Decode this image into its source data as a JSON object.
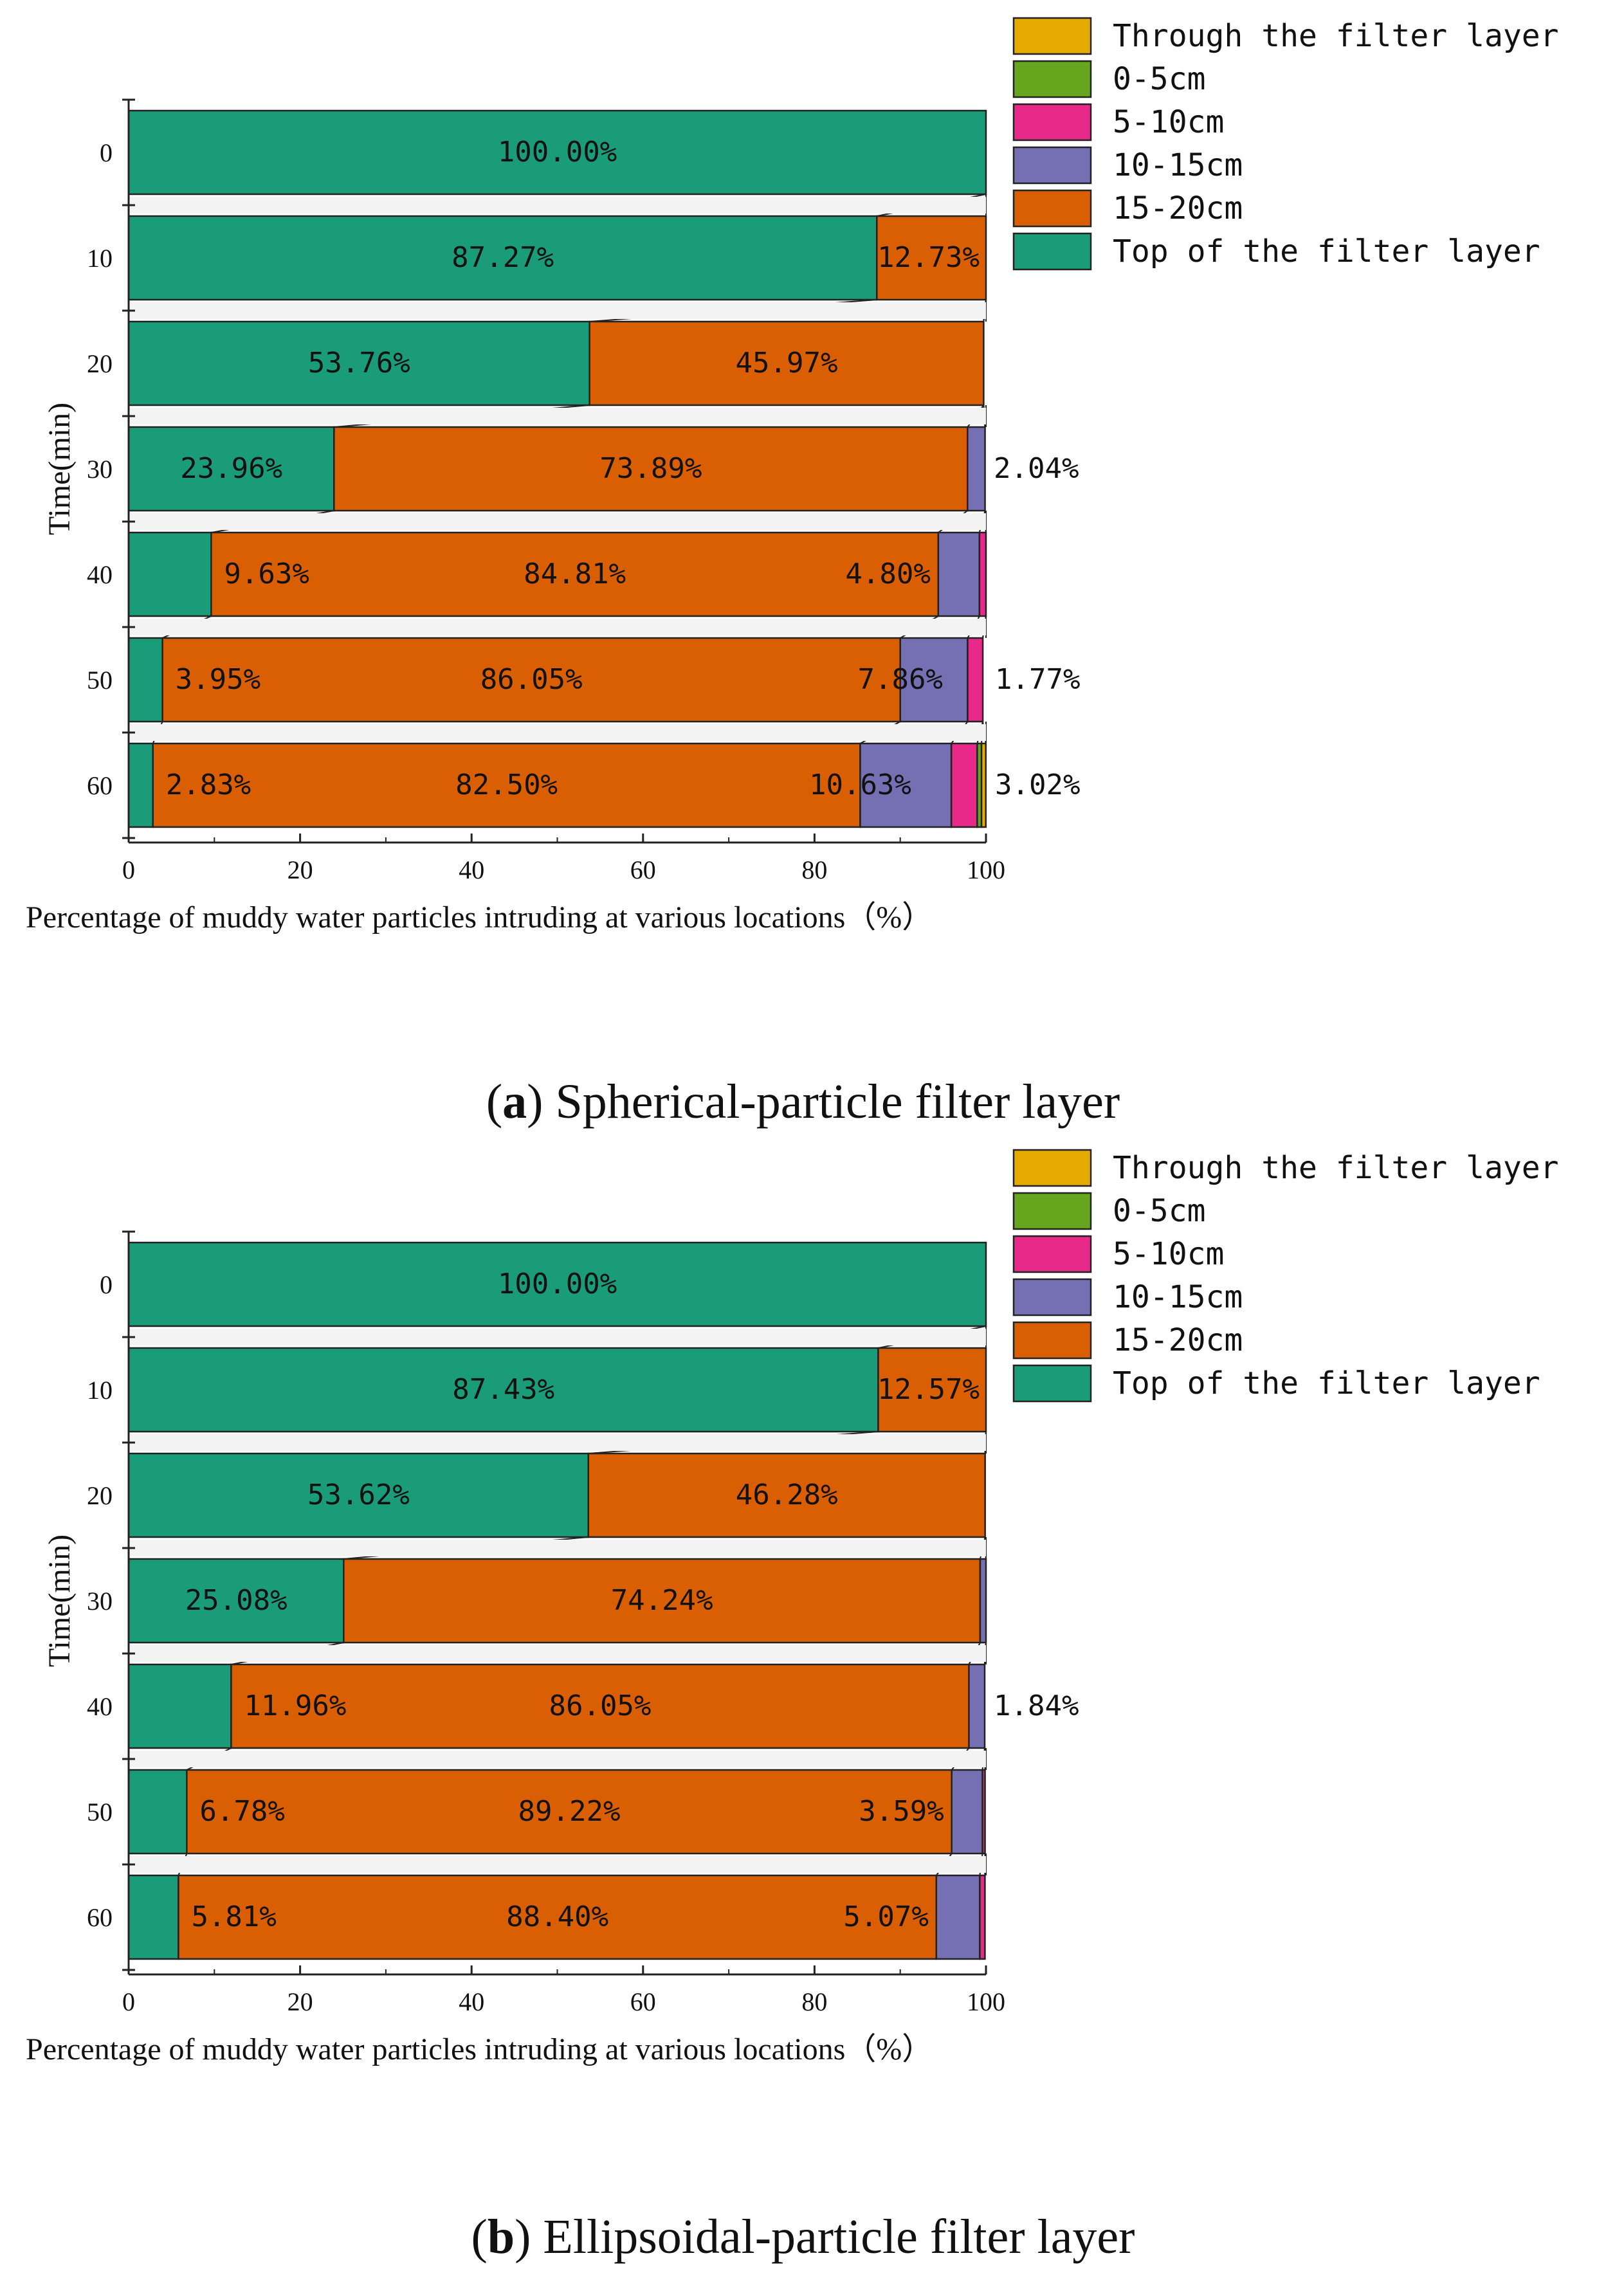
{
  "chart_data": [
    {
      "type": "bar",
      "orientation": "horizontal-stacked",
      "ylabel": "Time(min)",
      "xlabel": "Percentage of muddy water particles intruding at various locations（%）",
      "xlim": [
        0,
        100
      ],
      "xticks": [
        "0",
        "20",
        "40",
        "60",
        "80",
        "100"
      ],
      "categories": [
        "0",
        "10",
        "20",
        "30",
        "40",
        "50",
        "60"
      ],
      "legend": [
        "Through the filter layer",
        "0-5cm",
        "5-10cm",
        "10-15cm",
        "15-20cm",
        "Top of the filter layer"
      ],
      "legend_position": "top-right",
      "series": [
        {
          "name": "Top of the filter layer",
          "color": "#1a9c78",
          "values": [
            100.0,
            87.27,
            53.76,
            23.96,
            9.63,
            3.95,
            2.83
          ]
        },
        {
          "name": "15-20cm",
          "color": "#d95f02",
          "values": [
            0,
            12.73,
            45.97,
            73.89,
            84.81,
            86.05,
            82.5
          ]
        },
        {
          "name": "10-15cm",
          "color": "#7570b3",
          "values": [
            0,
            0,
            0,
            2.04,
            4.8,
            7.86,
            10.63
          ]
        },
        {
          "name": "5-10cm",
          "color": "#e7298a",
          "values": [
            0,
            0,
            0,
            0,
            0.76,
            1.77,
            3.02
          ]
        },
        {
          "name": "0-5cm",
          "color": "#66a61e",
          "values": [
            0,
            0,
            0,
            0,
            0,
            0,
            0.5
          ]
        },
        {
          "name": "Through the filter layer",
          "color": "#e6ab02",
          "values": [
            0,
            0,
            0,
            0,
            0,
            0,
            0.5
          ]
        }
      ],
      "labels": [
        [
          "100.00%",
          "",
          "",
          "",
          "",
          ""
        ],
        [
          "87.27%",
          "12.73%",
          "",
          "",
          "",
          ""
        ],
        [
          "53.76%",
          "45.97%",
          "",
          "",
          "",
          ""
        ],
        [
          "23.96%",
          "73.89%",
          "2.04%",
          "",
          "",
          ""
        ],
        [
          "9.63%",
          "84.81%",
          "4.80%",
          "",
          "",
          ""
        ],
        [
          "3.95%",
          "86.05%",
          "7.86%",
          "1.77%",
          "",
          ""
        ],
        [
          "2.83%",
          "82.50%",
          "10.63%",
          "3.02%",
          "",
          ""
        ]
      ]
    },
    {
      "type": "bar",
      "orientation": "horizontal-stacked",
      "ylabel": "Time(min)",
      "xlabel": "Percentage of muddy water particles intruding at various locations（%）",
      "xlim": [
        0,
        100
      ],
      "xticks": [
        "0",
        "20",
        "40",
        "60",
        "80",
        "100"
      ],
      "categories": [
        "0",
        "10",
        "20",
        "30",
        "40",
        "50",
        "60"
      ],
      "legend": [
        "Through the filter layer",
        "0-5cm",
        "5-10cm",
        "10-15cm",
        "15-20cm",
        "Top of the filter layer"
      ],
      "legend_position": "top-right",
      "series": [
        {
          "name": "Top of the filter layer",
          "color": "#1a9c78",
          "values": [
            100.0,
            87.43,
            53.62,
            25.08,
            11.96,
            6.78,
            5.81
          ]
        },
        {
          "name": "15-20cm",
          "color": "#d95f02",
          "values": [
            0,
            12.57,
            46.28,
            74.24,
            86.05,
            89.22,
            88.4
          ]
        },
        {
          "name": "10-15cm",
          "color": "#7570b3",
          "values": [
            0,
            0,
            0,
            0.68,
            1.84,
            3.59,
            5.07
          ]
        },
        {
          "name": "5-10cm",
          "color": "#e7298a",
          "values": [
            0,
            0,
            0,
            0,
            0,
            0.3,
            0.6
          ]
        },
        {
          "name": "0-5cm",
          "color": "#66a61e",
          "values": [
            0,
            0,
            0,
            0,
            0,
            0,
            0
          ]
        },
        {
          "name": "Through the filter layer",
          "color": "#e6ab02",
          "values": [
            0,
            0,
            0,
            0,
            0,
            0,
            0
          ]
        }
      ],
      "labels": [
        [
          "100.00%",
          "",
          "",
          "",
          "",
          ""
        ],
        [
          "87.43%",
          "12.57%",
          "",
          "",
          "",
          ""
        ],
        [
          "53.62%",
          "46.28%",
          "",
          "",
          "",
          ""
        ],
        [
          "25.08%",
          "74.24%",
          "",
          "",
          "",
          ""
        ],
        [
          "11.96%",
          "86.05%",
          "1.84%",
          "",
          "",
          ""
        ],
        [
          "6.78%",
          "89.22%",
          "3.59%",
          "",
          "",
          ""
        ],
        [
          "5.81%",
          "88.40%",
          "5.07%",
          "",
          "",
          ""
        ]
      ]
    }
  ],
  "captions": [
    {
      "letter": "a",
      "text": " Spherical-particle filter layer"
    },
    {
      "letter": "b",
      "text": " Ellipsoidal-particle filter layer"
    }
  ]
}
